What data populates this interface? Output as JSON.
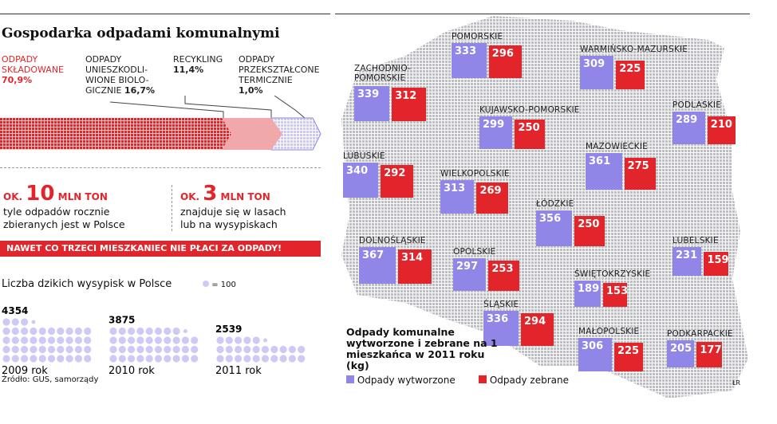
{
  "title": "Gospodarka odpadami komunalnymi",
  "colors": {
    "red": "#e2252b",
    "pink": "#f0a8ab",
    "purple": "#8f86e8",
    "lavender": "#cfcaf5"
  },
  "waste_structure": [
    {
      "label": "ODPADY SKŁADOWANE",
      "value": "70,9%",
      "pct": 70.9
    },
    {
      "label": "ODPADY UNIESZKODLI- WIONE BIOLO- GICZNIE",
      "value": "16,7%",
      "pct": 16.7
    },
    {
      "label": "RECYKLING",
      "value": "11,4%",
      "pct": 11.4
    },
    {
      "label": "ODPADY PRZEKSZTAŁCONE TERMICZNIE",
      "value": "1,0%",
      "pct": 1.0
    }
  ],
  "stats": [
    {
      "prefix": "OK.",
      "number": "10",
      "unit": "MLN TON",
      "text": "tyle odpadów rocznie zbieranych jest w Polsce"
    },
    {
      "prefix": "OK.",
      "number": "3",
      "unit": "MLN TON",
      "text": "znajduje się w lasach lub na wysypiskach"
    }
  ],
  "banner": "NAWET CO TRZECI MIESZKANIEC NIE PŁACI ZA ODPADY!",
  "dumps": {
    "title": "Liczba dzikich wysypisk w Polsce",
    "legend": "= 100",
    "items": [
      {
        "year": "2009 rok",
        "value": 4354
      },
      {
        "year": "2010 rok",
        "value": 3875
      },
      {
        "year": "2011 rok",
        "value": 2539
      }
    ]
  },
  "source": "Źródło: GUS, samorządy",
  "author": "ŁR",
  "chart_data": {
    "type": "bar",
    "title": "Odpady komunalne wytworzone i zebrane na 1 mieszkańca w 2011 roku (kg)",
    "series": [
      {
        "name": "Odpady wytworzone"
      },
      {
        "name": "Odpady zebrane"
      }
    ],
    "regions": [
      {
        "name": "POMORSKIE",
        "wytworzone": 333,
        "zebrane": 296
      },
      {
        "name": "WARMIŃSKO-MAZURSKIE",
        "wytworzone": 309,
        "zebrane": 225
      },
      {
        "name": "ZACHODNIO-POMORSKIE",
        "wytworzone": 339,
        "zebrane": 312
      },
      {
        "name": "KUJAWSKO-POMORSKIE",
        "wytworzone": 299,
        "zebrane": 250
      },
      {
        "name": "PODLASKIE",
        "wytworzone": 289,
        "zebrane": 210
      },
      {
        "name": "MAZOWIECKIE",
        "wytworzone": 361,
        "zebrane": 275
      },
      {
        "name": "LUBUSKIE",
        "wytworzone": 340,
        "zebrane": 292
      },
      {
        "name": "WIELKOPOLSKIE",
        "wytworzone": 313,
        "zebrane": 269
      },
      {
        "name": "ŁÓDZKIE",
        "wytworzone": 356,
        "zebrane": 250
      },
      {
        "name": "DOLNOŚLĄSKIE",
        "wytworzone": 367,
        "zebrane": 314
      },
      {
        "name": "OPOLSKIE",
        "wytworzone": 297,
        "zebrane": 253
      },
      {
        "name": "LUBELSKIE",
        "wytworzone": 231,
        "zebrane": 159
      },
      {
        "name": "ŚWIĘTOKRZYSKIE",
        "wytworzone": 189,
        "zebrane": 153
      },
      {
        "name": "ŚLĄSKIE",
        "wytworzone": 336,
        "zebrane": 294
      },
      {
        "name": "MAŁOPOLSKIE",
        "wytworzone": 306,
        "zebrane": 225
      },
      {
        "name": "PODKARPACKIE",
        "wytworzone": 205,
        "zebrane": 177
      }
    ]
  }
}
